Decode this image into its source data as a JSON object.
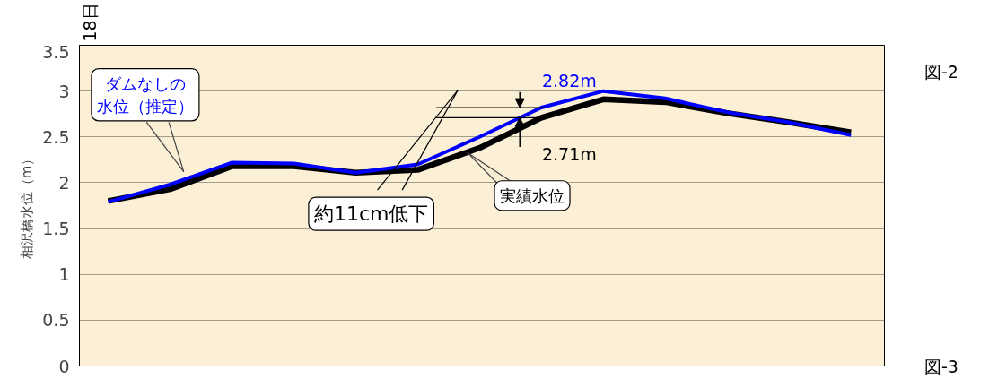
{
  "chart_data": {
    "type": "line",
    "ylabel": "相沢橋水位（m）",
    "categories": [
      null,
      null,
      null,
      null,
      null,
      null,
      null,
      null,
      null,
      null,
      null,
      null,
      null
    ],
    "series": [
      {
        "name": "実績水位",
        "color": "#000000",
        "values": [
          1.8,
          1.93,
          2.18,
          2.18,
          2.11,
          2.14,
          2.38,
          2.71,
          2.91,
          2.88,
          2.76,
          2.66,
          2.55
        ]
      },
      {
        "name": "ダムなしの水位（推定）",
        "color": "#0000ff",
        "values": [
          1.79,
          1.98,
          2.22,
          2.21,
          2.11,
          2.2,
          2.5,
          2.82,
          3.0,
          2.92,
          2.77,
          2.66,
          2.52
        ]
      }
    ],
    "ylim": [
      0,
      3.5
    ],
    "yticks": [
      0,
      0.5,
      1,
      1.5,
      2,
      2.5,
      3,
      3.5
    ],
    "ref_lines": [
      {
        "axis": "y",
        "value": 2.82
      },
      {
        "axis": "y",
        "value": 2.71
      }
    ],
    "grid": "y",
    "legend": false,
    "marker": "none",
    "line_style": "solid",
    "annotations": [
      "18日",
      "約11cm低下",
      "2.82m",
      "2.71m",
      "図-2",
      "図-3"
    ]
  }
}
